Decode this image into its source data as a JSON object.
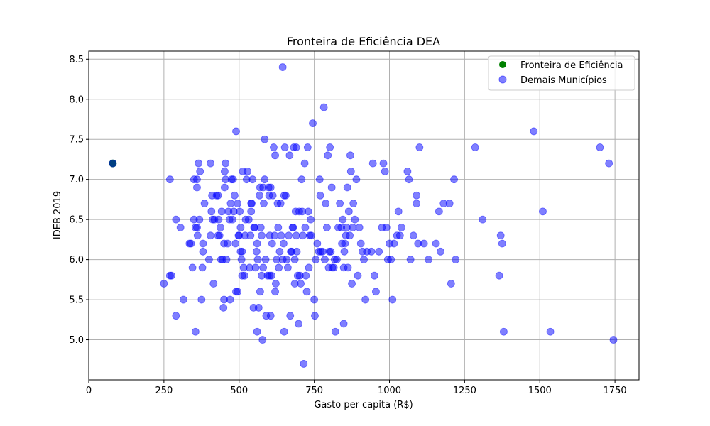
{
  "chart_data": {
    "type": "scatter",
    "title": "Fronteira de Eficiência DEA",
    "xlabel": "Gasto per capita (R$)",
    "ylabel": "IDEB 2019",
    "xlim": [
      0,
      1830
    ],
    "ylim": [
      4.5,
      8.6
    ],
    "xticks": [
      0,
      250,
      500,
      750,
      1000,
      1250,
      1500,
      1750
    ],
    "yticks": [
      5.0,
      5.5,
      6.0,
      6.5,
      7.0,
      7.5,
      8.0,
      8.5
    ],
    "grid": true,
    "legend_position": "top-right",
    "series": [
      {
        "name": "Fronteira de Eficiência",
        "color": "#008000",
        "points": [
          [
            80,
            7.2
          ]
        ]
      },
      {
        "name": "Demais Municípios",
        "color": "#0000ff",
        "points": [
          [
            80,
            7.2
          ],
          [
            250,
            5.7
          ],
          [
            270,
            5.8
          ],
          [
            275,
            5.8
          ],
          [
            270,
            7.0
          ],
          [
            290,
            6.5
          ],
          [
            290,
            5.3
          ],
          [
            305,
            6.4
          ],
          [
            315,
            5.5
          ],
          [
            335,
            6.2
          ],
          [
            340,
            6.2
          ],
          [
            345,
            5.9
          ],
          [
            350,
            6.5
          ],
          [
            350,
            7.0
          ],
          [
            355,
            6.4
          ],
          [
            355,
            5.1
          ],
          [
            360,
            6.4
          ],
          [
            360,
            7.0
          ],
          [
            360,
            6.9
          ],
          [
            362,
            6.3
          ],
          [
            365,
            7.2
          ],
          [
            368,
            6.5
          ],
          [
            370,
            7.1
          ],
          [
            375,
            5.5
          ],
          [
            378,
            5.9
          ],
          [
            380,
            6.1
          ],
          [
            380,
            6.2
          ],
          [
            385,
            6.7
          ],
          [
            400,
            6.0
          ],
          [
            405,
            7.2
          ],
          [
            405,
            6.3
          ],
          [
            408,
            6.6
          ],
          [
            410,
            6.8
          ],
          [
            412,
            6.5
          ],
          [
            415,
            5.7
          ],
          [
            418,
            6.5
          ],
          [
            425,
            6.8
          ],
          [
            430,
            6.3
          ],
          [
            430,
            6.8
          ],
          [
            432,
            6.5
          ],
          [
            435,
            6.3
          ],
          [
            438,
            6.4
          ],
          [
            440,
            6.0
          ],
          [
            442,
            6.6
          ],
          [
            445,
            6.0
          ],
          [
            448,
            5.4
          ],
          [
            450,
            5.5
          ],
          [
            450,
            6.2
          ],
          [
            452,
            7.1
          ],
          [
            452,
            6.9
          ],
          [
            455,
            7.2
          ],
          [
            455,
            7.0
          ],
          [
            458,
            6.0
          ],
          [
            462,
            6.2
          ],
          [
            465,
            6.6
          ],
          [
            468,
            6.5
          ],
          [
            470,
            5.5
          ],
          [
            472,
            6.7
          ],
          [
            475,
            7.0
          ],
          [
            478,
            6.5
          ],
          [
            480,
            7.0
          ],
          [
            482,
            6.6
          ],
          [
            485,
            6.8
          ],
          [
            488,
            6.2
          ],
          [
            490,
            7.6
          ],
          [
            490,
            5.6
          ],
          [
            495,
            5.6
          ],
          [
            495,
            6.7
          ],
          [
            498,
            6.3
          ],
          [
            500,
            6.3
          ],
          [
            502,
            6.6
          ],
          [
            505,
            6.4
          ],
          [
            505,
            6.1
          ],
          [
            508,
            6.0
          ],
          [
            510,
            6.1
          ],
          [
            510,
            5.8
          ],
          [
            512,
            7.1
          ],
          [
            515,
            5.9
          ],
          [
            518,
            5.8
          ],
          [
            520,
            6.3
          ],
          [
            522,
            6.5
          ],
          [
            525,
            7.0
          ],
          [
            528,
            7.1
          ],
          [
            532,
            6.5
          ],
          [
            535,
            5.9
          ],
          [
            538,
            6.3
          ],
          [
            540,
            6.7
          ],
          [
            540,
            6.6
          ],
          [
            542,
            6.7
          ],
          [
            545,
            7.0
          ],
          [
            548,
            5.4
          ],
          [
            550,
            6.4
          ],
          [
            552,
            6.4
          ],
          [
            555,
            5.9
          ],
          [
            558,
            6.1
          ],
          [
            560,
            6.2
          ],
          [
            560,
            5.1
          ],
          [
            562,
            6.0
          ],
          [
            565,
            5.4
          ],
          [
            568,
            6.8
          ],
          [
            570,
            6.9
          ],
          [
            570,
            5.6
          ],
          [
            572,
            6.4
          ],
          [
            575,
            6.3
          ],
          [
            575,
            5.8
          ],
          [
            578,
            5.0
          ],
          [
            580,
            6.9
          ],
          [
            580,
            5.9
          ],
          [
            582,
            6.7
          ],
          [
            585,
            7.0
          ],
          [
            585,
            7.5
          ],
          [
            588,
            6.0
          ],
          [
            590,
            5.3
          ],
          [
            595,
            5.8
          ],
          [
            598,
            6.9
          ],
          [
            600,
            6.8
          ],
          [
            602,
            6.3
          ],
          [
            602,
            5.8
          ],
          [
            605,
            5.3
          ],
          [
            605,
            6.9
          ],
          [
            608,
            5.8
          ],
          [
            610,
            6.2
          ],
          [
            612,
            6.8
          ],
          [
            615,
            7.4
          ],
          [
            618,
            6.3
          ],
          [
            620,
            5.6
          ],
          [
            620,
            7.3
          ],
          [
            622,
            5.7
          ],
          [
            625,
            6.0
          ],
          [
            628,
            6.7
          ],
          [
            630,
            6.4
          ],
          [
            632,
            5.9
          ],
          [
            635,
            6.1
          ],
          [
            638,
            6.7
          ],
          [
            640,
            6.3
          ],
          [
            645,
            8.4
          ],
          [
            645,
            6.0
          ],
          [
            648,
            6.2
          ],
          [
            650,
            6.8
          ],
          [
            650,
            5.1
          ],
          [
            652,
            7.4
          ],
          [
            655,
            6.8
          ],
          [
            658,
            6.0
          ],
          [
            662,
            5.9
          ],
          [
            665,
            6.3
          ],
          [
            668,
            7.3
          ],
          [
            670,
            5.3
          ],
          [
            672,
            6.1
          ],
          [
            675,
            6.1
          ],
          [
            678,
            6.4
          ],
          [
            680,
            6.4
          ],
          [
            682,
            7.4
          ],
          [
            685,
            6.0
          ],
          [
            685,
            5.7
          ],
          [
            688,
            6.6
          ],
          [
            690,
            6.3
          ],
          [
            690,
            7.4
          ],
          [
            692,
            6.1
          ],
          [
            695,
            5.8
          ],
          [
            698,
            5.2
          ],
          [
            700,
            6.6
          ],
          [
            702,
            5.8
          ],
          [
            705,
            5.7
          ],
          [
            708,
            7.0
          ],
          [
            710,
            6.6
          ],
          [
            712,
            6.3
          ],
          [
            715,
            4.7
          ],
          [
            718,
            7.2
          ],
          [
            720,
            6.4
          ],
          [
            722,
            5.8
          ],
          [
            725,
            5.6
          ],
          [
            728,
            7.4
          ],
          [
            730,
            6.6
          ],
          [
            732,
            5.9
          ],
          [
            735,
            6.3
          ],
          [
            738,
            6.5
          ],
          [
            740,
            6.3
          ],
          [
            745,
            7.7
          ],
          [
            750,
            5.5
          ],
          [
            752,
            5.3
          ],
          [
            755,
            6.0
          ],
          [
            760,
            6.2
          ],
          [
            765,
            6.1
          ],
          [
            768,
            7.0
          ],
          [
            770,
            6.8
          ],
          [
            772,
            6.1
          ],
          [
            778,
            6.1
          ],
          [
            782,
            7.9
          ],
          [
            785,
            6.0
          ],
          [
            788,
            6.7
          ],
          [
            792,
            6.4
          ],
          [
            795,
            7.3
          ],
          [
            798,
            5.9
          ],
          [
            800,
            6.1
          ],
          [
            802,
            7.4
          ],
          [
            805,
            6.1
          ],
          [
            808,
            6.9
          ],
          [
            810,
            5.9
          ],
          [
            815,
            5.9
          ],
          [
            818,
            6.0
          ],
          [
            820,
            5.1
          ],
          [
            825,
            6.0
          ],
          [
            830,
            6.4
          ],
          [
            835,
            6.7
          ],
          [
            840,
            6.4
          ],
          [
            842,
            6.2
          ],
          [
            845,
            6.5
          ],
          [
            848,
            5.9
          ],
          [
            848,
            5.2
          ],
          [
            850,
            6.1
          ],
          [
            852,
            6.2
          ],
          [
            855,
            6.3
          ],
          [
            858,
            6.4
          ],
          [
            860,
            6.9
          ],
          [
            862,
            5.9
          ],
          [
            865,
            6.6
          ],
          [
            868,
            6.3
          ],
          [
            870,
            7.3
          ],
          [
            872,
            7.1
          ],
          [
            875,
            5.7
          ],
          [
            878,
            6.4
          ],
          [
            880,
            6.7
          ],
          [
            885,
            6.5
          ],
          [
            890,
            7.0
          ],
          [
            895,
            5.8
          ],
          [
            900,
            6.4
          ],
          [
            905,
            6.2
          ],
          [
            910,
            6.1
          ],
          [
            915,
            6.0
          ],
          [
            920,
            5.5
          ],
          [
            925,
            6.1
          ],
          [
            940,
            6.1
          ],
          [
            945,
            7.2
          ],
          [
            950,
            5.8
          ],
          [
            955,
            5.6
          ],
          [
            965,
            6.1
          ],
          [
            975,
            6.4
          ],
          [
            980,
            7.2
          ],
          [
            985,
            7.1
          ],
          [
            990,
            6.4
          ],
          [
            995,
            6.0
          ],
          [
            1000,
            6.2
          ],
          [
            1005,
            6.0
          ],
          [
            1010,
            5.5
          ],
          [
            1015,
            6.2
          ],
          [
            1025,
            6.3
          ],
          [
            1030,
            6.6
          ],
          [
            1035,
            6.3
          ],
          [
            1040,
            6.4
          ],
          [
            1060,
            7.1
          ],
          [
            1065,
            7.0
          ],
          [
            1070,
            6.0
          ],
          [
            1080,
            6.3
          ],
          [
            1090,
            6.8
          ],
          [
            1090,
            6.7
          ],
          [
            1095,
            6.2
          ],
          [
            1100,
            7.4
          ],
          [
            1115,
            6.2
          ],
          [
            1130,
            6.0
          ],
          [
            1155,
            6.2
          ],
          [
            1165,
            6.6
          ],
          [
            1170,
            6.1
          ],
          [
            1180,
            6.7
          ],
          [
            1200,
            6.7
          ],
          [
            1205,
            5.7
          ],
          [
            1215,
            7.0
          ],
          [
            1220,
            6.0
          ],
          [
            1285,
            7.4
          ],
          [
            1310,
            6.5
          ],
          [
            1365,
            5.8
          ],
          [
            1370,
            6.3
          ],
          [
            1375,
            6.2
          ],
          [
            1380,
            5.1
          ],
          [
            1480,
            7.6
          ],
          [
            1510,
            6.6
          ],
          [
            1535,
            5.1
          ],
          [
            1700,
            7.4
          ],
          [
            1730,
            7.2
          ],
          [
            1745,
            5.0
          ]
        ]
      }
    ]
  }
}
